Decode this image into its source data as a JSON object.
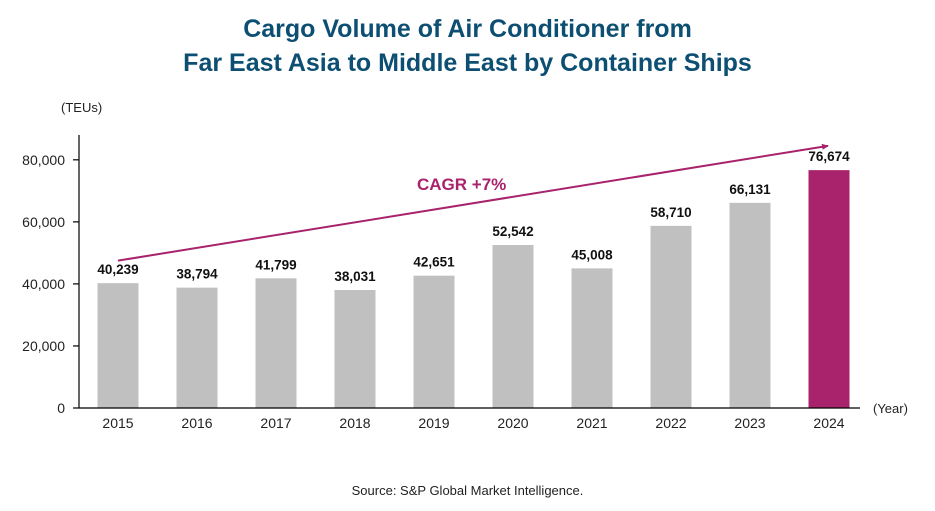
{
  "header": {
    "title_line1": "Cargo Volume of Air Conditioner from",
    "title_line2": "Far East Asia to Middle East by Container Ships"
  },
  "footer": {
    "source": "Source: S&P Global Market Intelligence."
  },
  "colors": {
    "title": "#0d4f73",
    "bar": "#c0c0c0",
    "highlight_bar": "#a8236b",
    "cagr": "#a8236b",
    "axis": "#000000"
  },
  "chart_data": {
    "type": "bar",
    "title": "Cargo Volume of Air Conditioner from Far East Asia to Middle East by Container Ships",
    "ylabel": "(TEUs)",
    "xlabel": "(Year)",
    "ylim": [
      0,
      88000
    ],
    "yticks": [
      0,
      20000,
      40000,
      60000,
      80000
    ],
    "ytick_labels": [
      "0",
      "20,000",
      "40,000",
      "60,000",
      "80,000"
    ],
    "categories": [
      "2015",
      "2016",
      "2017",
      "2018",
      "2019",
      "2020",
      "2021",
      "2022",
      "2023",
      "2024"
    ],
    "values": [
      40239,
      38794,
      41799,
      38031,
      42651,
      52542,
      45008,
      58710,
      66131,
      76674
    ],
    "value_labels": [
      "40,239",
      "38,794",
      "41,799",
      "38,031",
      "42,651",
      "52,542",
      "45,008",
      "58,710",
      "66,131",
      "76,674"
    ],
    "highlight_index": 9,
    "annotation": {
      "text": "CAGR +7%",
      "from_category": "2015",
      "to_category": "2024",
      "from_value": 47500,
      "to_value": 84500
    },
    "grid": false,
    "legend": "none"
  }
}
